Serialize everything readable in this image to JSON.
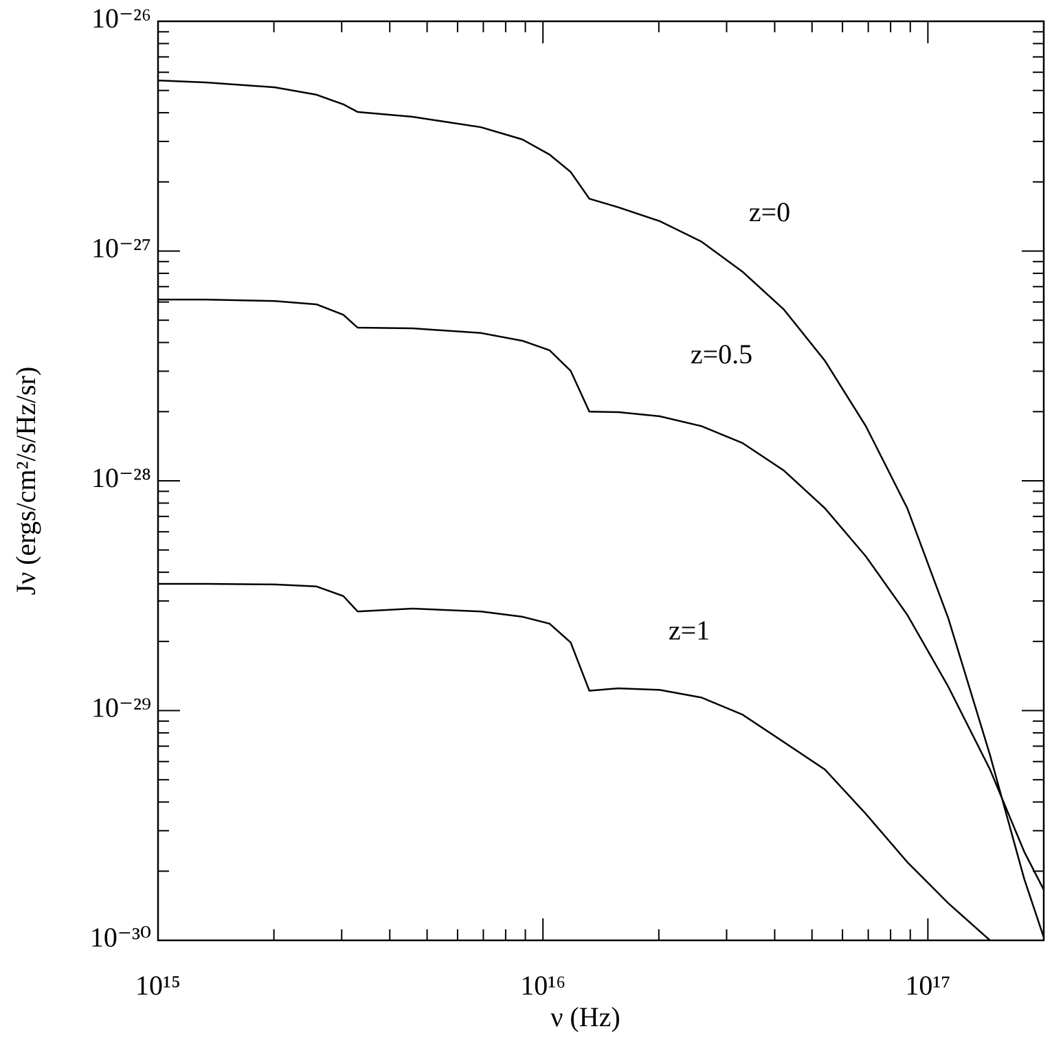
{
  "chart_data": {
    "type": "line",
    "x_label": "ν (Hz)",
    "y_label": "Jν (ergs/cm²/s/Hz/sr)",
    "x_log": true,
    "y_log": true,
    "xlim": [
      1000000000000000.0,
      2e+17
    ],
    "ylim": [
      1e-30,
      1e-26
    ],
    "xticks": [
      {
        "value": 1000000000000000.0,
        "label": "10¹⁵"
      },
      {
        "value": 1e+16,
        "label": "10¹⁶"
      },
      {
        "value": 1e+17,
        "label": "10¹⁷"
      }
    ],
    "yticks": [
      {
        "value": 1e-30,
        "label": "10⁻³⁰"
      },
      {
        "value": 1e-29,
        "label": "10⁻²⁹"
      },
      {
        "value": 1e-28,
        "label": "10⁻²⁸"
      },
      {
        "value": 1e-27,
        "label": "10⁻²⁷"
      },
      {
        "value": 1e-26,
        "label": "10⁻²⁶"
      }
    ],
    "grid": false,
    "x": [
      1000000000000000.0,
      1330000000000000.0,
      2010000000000000.0,
      2580000000000000.0,
      3030000000000000.0,
      3300000000000000.0,
      4580000000000000.0,
      6900000000000000.0,
      8840000000000000.0,
      1.04e+16,
      1.18e+16,
      1.32e+16,
      1.57e+16,
      2.01e+16,
      2.58e+16,
      3.3e+16,
      4.22e+16,
      5.4e+16,
      6.9e+16,
      8.84e+16,
      1.13e+17,
      1.45e+17,
      1.78e+17,
      2e+17
    ],
    "series": [
      {
        "name": "z=0",
        "color": "#000000",
        "values": [
          5.53e-27,
          5.42e-27,
          5.16e-27,
          4.79e-27,
          4.35e-27,
          4.03e-27,
          3.84e-27,
          3.46e-27,
          3.06e-27,
          2.63e-27,
          2.21e-27,
          1.69e-27,
          1.55e-27,
          1.35e-27,
          1.1e-27,
          8.13e-28,
          5.58e-28,
          3.33e-28,
          1.73e-28,
          7.6e-29,
          2.52e-29,
          6.4e-30,
          1.85e-30,
          1.03e-30
        ]
      },
      {
        "name": "z=0.5",
        "color": "#000000",
        "values": [
          6.15e-28,
          6.15e-28,
          6.06e-28,
          5.86e-28,
          5.28e-28,
          4.64e-28,
          4.61e-28,
          4.4e-28,
          4.07e-28,
          3.7e-28,
          3.01e-28,
          2e-28,
          1.99e-28,
          1.91e-28,
          1.73e-28,
          1.46e-28,
          1.11e-28,
          7.6e-29,
          4.69e-29,
          2.61e-29,
          1.27e-29,
          5.54e-30,
          2.43e-30,
          1.66e-30
        ]
      },
      {
        "name": "z=1",
        "color": "#000000",
        "values": [
          3.56e-29,
          3.56e-29,
          3.54e-29,
          3.47e-29,
          3.15e-29,
          2.7e-29,
          2.78e-29,
          2.7e-29,
          2.56e-29,
          2.39e-29,
          1.98e-29,
          1.22e-29,
          1.25e-29,
          1.23e-29,
          1.14e-29,
          9.6e-30,
          7.3e-30,
          5.54e-30,
          3.55e-30,
          2.19e-30,
          1.45e-30,
          1e-30,
          null,
          null
        ]
      }
    ]
  }
}
